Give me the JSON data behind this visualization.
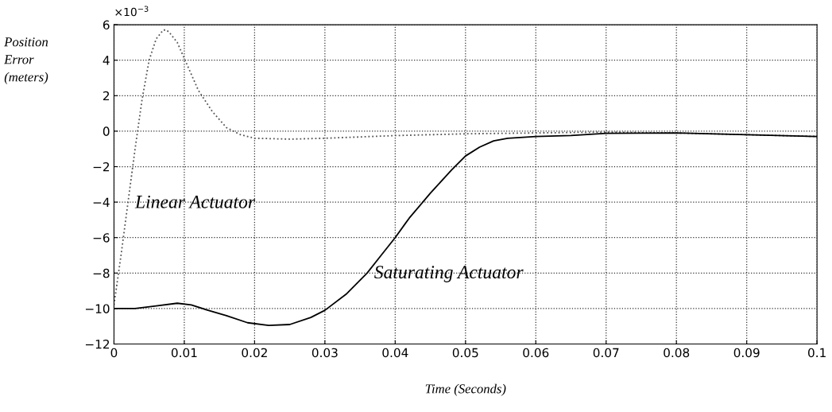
{
  "chart_data": {
    "type": "line",
    "xlabel": "Time (Seconds)",
    "ylabel": "Position\nError\n(meters)",
    "xlim": [
      0,
      0.1
    ],
    "xticks": [
      0,
      0.01,
      0.02,
      0.03,
      0.04,
      0.05,
      0.06,
      0.07,
      0.08,
      0.09,
      0.1
    ],
    "ylim": [
      -12,
      6
    ],
    "yticks": [
      -12,
      -10,
      -8,
      -6,
      -4,
      -2,
      0,
      2,
      4,
      6
    ],
    "grid": true,
    "annotations": [
      "×10$^{−3}$",
      "Linear Actuator",
      "Saturating Actuator"
    ],
    "series": [
      {
        "color": "#555555",
        "line_style": "dotted",
        "x": [
          0,
          0.001,
          0.002,
          0.003,
          0.004,
          0.005,
          0.006,
          0.007,
          0.0075,
          0.008,
          0.009,
          0.01,
          0.012,
          0.014,
          0.016,
          0.018,
          0.02,
          0.025,
          0.03,
          0.04,
          0.05,
          0.06,
          0.07,
          0.08,
          0.09,
          0.1
        ],
        "values": [
          -9.8,
          -7,
          -4,
          -1,
          1.8,
          4,
          5.2,
          5.7,
          5.7,
          5.5,
          5,
          4.1,
          2.3,
          1.1,
          0.2,
          -0.2,
          -0.4,
          -0.45,
          -0.4,
          -0.25,
          -0.15,
          -0.1,
          -0.05,
          -0.1,
          -0.2,
          -0.3
        ]
      },
      {
        "color": "#000000",
        "line_style": "solid",
        "x": [
          0,
          0.003,
          0.006,
          0.009,
          0.011,
          0.013,
          0.016,
          0.019,
          0.022,
          0.025,
          0.028,
          0.03,
          0.033,
          0.036,
          0.038,
          0.04,
          0.042,
          0.045,
          0.048,
          0.05,
          0.052,
          0.054,
          0.056,
          0.06,
          0.065,
          0.07,
          0.08,
          0.09,
          0.1
        ],
        "values": [
          -10,
          -10,
          -9.85,
          -9.7,
          -9.8,
          -10.05,
          -10.4,
          -10.8,
          -10.95,
          -10.9,
          -10.5,
          -10.1,
          -9.2,
          -8,
          -7,
          -6,
          -4.9,
          -3.5,
          -2.2,
          -1.4,
          -0.9,
          -0.55,
          -0.4,
          -0.3,
          -0.25,
          -0.12,
          -0.1,
          -0.2,
          -0.3
        ]
      }
    ]
  }
}
